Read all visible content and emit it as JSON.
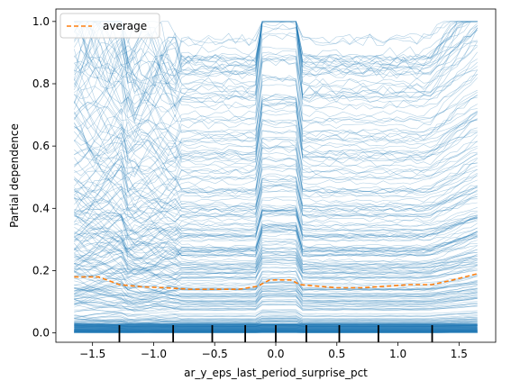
{
  "chart_data": {
    "type": "line",
    "subtype": "partial-dependence-ice",
    "xlabel": "ar_y_eps_last_period_surprise_pct",
    "ylabel": "Partial dependence",
    "xlim": [
      -1.8,
      1.8
    ],
    "ylim": [
      -0.03,
      1.04
    ],
    "xticks": [
      -1.5,
      -1.0,
      -0.5,
      0.0,
      0.5,
      1.0,
      1.5
    ],
    "xtick_labels": [
      "−1.5",
      "−1.0",
      "−0.5",
      "0.0",
      "0.5",
      "1.0",
      "1.5"
    ],
    "yticks": [
      0.0,
      0.2,
      0.4,
      0.6,
      0.8,
      1.0
    ],
    "ytick_labels": [
      "0.0",
      "0.2",
      "0.4",
      "0.6",
      "0.8",
      "1.0"
    ],
    "grid": false,
    "legend": {
      "position": "top-left",
      "entries": [
        "average"
      ]
    },
    "colors": {
      "ice_lines": "#1f77b4",
      "average": "#ff7f0e"
    },
    "average": {
      "name": "average",
      "x": [
        -1.65,
        -1.45,
        -1.28,
        -1.1,
        -0.9,
        -0.7,
        -0.5,
        -0.3,
        -0.15,
        -0.05,
        0.12,
        0.2,
        0.35,
        0.5,
        0.7,
        0.9,
        1.1,
        1.28,
        1.45,
        1.65
      ],
      "y": [
        0.18,
        0.18,
        0.155,
        0.148,
        0.145,
        0.14,
        0.14,
        0.14,
        0.15,
        0.17,
        0.17,
        0.155,
        0.15,
        0.145,
        0.145,
        0.15,
        0.155,
        0.155,
        0.17,
        0.19
      ]
    },
    "ice_summary": {
      "x_range": [
        -1.65,
        1.65
      ],
      "y_range": [
        0.0,
        1.0
      ]
    },
    "rug_x": [
      -1.28,
      -0.84,
      -0.52,
      -0.25,
      0.0,
      0.25,
      0.52,
      0.84,
      1.28
    ]
  }
}
